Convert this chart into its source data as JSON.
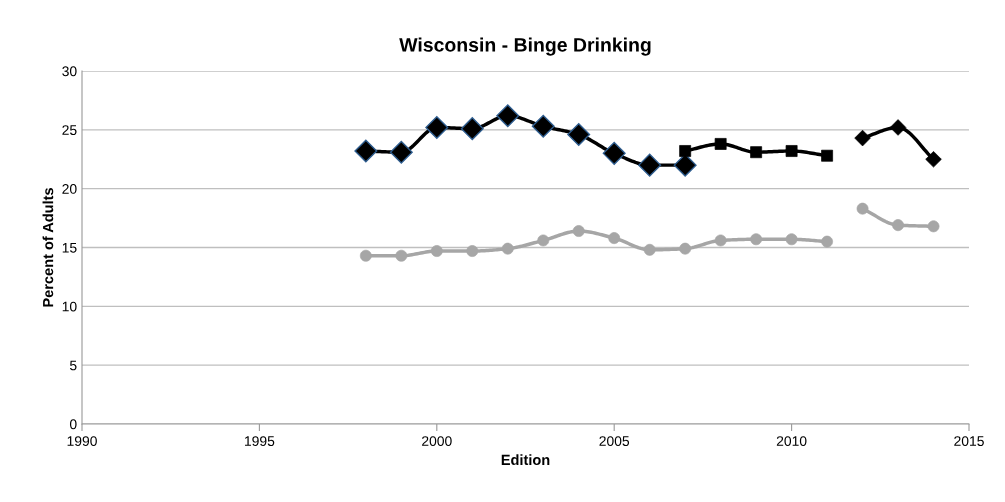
{
  "chart_data": {
    "type": "line",
    "title": "Wisconsin - Binge Drinking",
    "xlabel": "Edition",
    "ylabel": "Percent of Adults",
    "xlim": [
      1990,
      2015
    ],
    "xticks": [
      1990,
      1995,
      2000,
      2005,
      2010,
      2015
    ],
    "ylim": [
      0,
      30
    ],
    "yticks": [
      0,
      5,
      10,
      15,
      20,
      25,
      30
    ],
    "grid": "y",
    "legend": false,
    "line_style": "solid",
    "series": [
      {
        "color": "#000000",
        "marker": "diamond",
        "x": [
          1998,
          1999,
          2000,
          2001,
          2002,
          2003,
          2004,
          2005,
          2006,
          2007
        ],
        "values": [
          23.2,
          23.1,
          25.2,
          25.1,
          26.2,
          25.3,
          24.6,
          23.0,
          22.0,
          22.0
        ]
      },
      {
        "color": "#000000",
        "marker": "square",
        "x": [
          2007,
          2008,
          2009,
          2010,
          2011
        ],
        "values": [
          23.2,
          23.8,
          23.1,
          23.2,
          22.8
        ]
      },
      {
        "color": "#000000",
        "marker": "diamond",
        "x": [
          2012,
          2013,
          2014
        ],
        "values": [
          24.3,
          25.2,
          22.5
        ]
      },
      {
        "color": "#a6a6a6",
        "marker": "circle",
        "x": [
          1998,
          1999,
          2000,
          2001,
          2002,
          2003,
          2004,
          2005,
          2006,
          2007,
          2008,
          2009,
          2010,
          2011
        ],
        "values": [
          14.3,
          14.3,
          14.7,
          14.7,
          14.9,
          15.6,
          16.4,
          15.8,
          14.8,
          14.9,
          15.6,
          15.7,
          15.7,
          15.5
        ]
      },
      {
        "color": "#a6a6a6",
        "marker": "circle",
        "x": [
          2012,
          2013,
          2014
        ],
        "values": [
          18.3,
          16.9,
          16.8
        ]
      }
    ]
  }
}
